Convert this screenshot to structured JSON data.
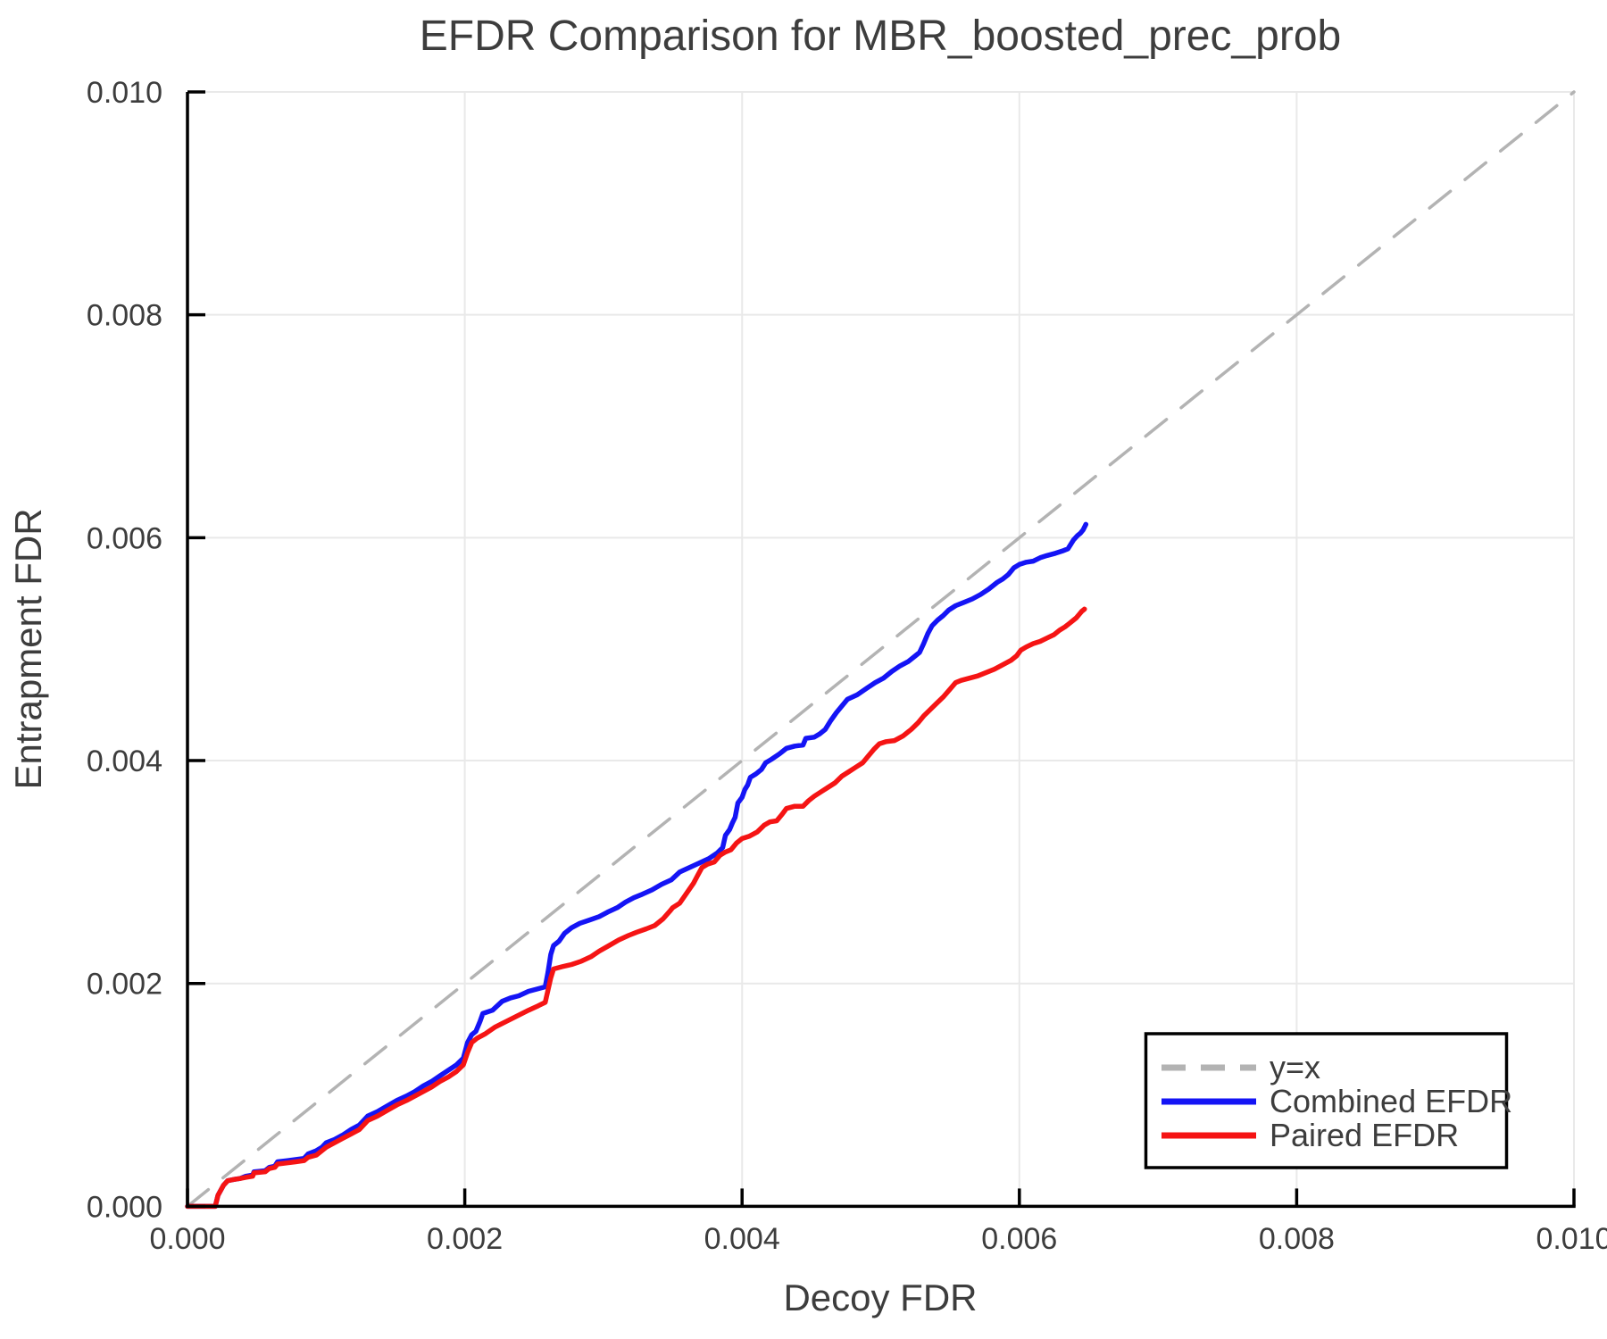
{
  "chart_data": {
    "type": "line",
    "title": "EFDR Comparison for MBR_boosted_prec_prob",
    "xlabel": "Decoy FDR",
    "ylabel": "Entrapment FDR",
    "xlim": [
      0,
      0.01
    ],
    "ylim": [
      0,
      0.01
    ],
    "grid": true,
    "background": "#ffffff",
    "grid_color": "#e9e9e9",
    "spine_color": "#000000",
    "text_color": "#3d3d3d",
    "xticks": {
      "values": [
        0,
        0.002,
        0.004,
        0.006,
        0.008,
        0.01
      ],
      "labels": [
        "0.000",
        "0.002",
        "0.004",
        "0.006",
        "0.008",
        "0.010"
      ]
    },
    "yticks": {
      "values": [
        0,
        0.002,
        0.004,
        0.006,
        0.008,
        0.01
      ],
      "labels": [
        "0.000",
        "0.002",
        "0.004",
        "0.006",
        "0.008",
        "0.010"
      ]
    },
    "legend": {
      "position": "lower-right"
    },
    "series": [
      {
        "name": "y=x",
        "color": "#b3b3b3",
        "style": "dashed",
        "width": 3.5,
        "points": [
          [
            0,
            0
          ],
          [
            0.01,
            0.01
          ]
        ]
      },
      {
        "name": "Combined EFDR",
        "color": "#1414f5",
        "style": "solid",
        "width": 5.5,
        "points": [
          [
            0,
            0
          ],
          [
            0.0002,
            0
          ],
          [
            0.00022,
            0.0001
          ],
          [
            0.00026,
            0.00019
          ],
          [
            0.00029,
            0.00023
          ],
          [
            0.00033,
            0.00024
          ],
          [
            0.00038,
            0.00025
          ],
          [
            0.00042,
            0.00027
          ],
          [
            0.00047,
            0.00028
          ],
          [
            0.00048,
            0.00031
          ],
          [
            0.00056,
            0.00032
          ],
          [
            0.00059,
            0.00035
          ],
          [
            0.00063,
            0.00036
          ],
          [
            0.00065,
            0.0004
          ],
          [
            0.00072,
            0.00041
          ],
          [
            0.00078,
            0.00042
          ],
          [
            0.00084,
            0.00043
          ],
          [
            0.00087,
            0.00047
          ],
          [
            0.00093,
            0.0005
          ],
          [
            0.00097,
            0.00053
          ],
          [
            0.001,
            0.00057
          ],
          [
            0.00106,
            0.0006
          ],
          [
            0.00112,
            0.00064
          ],
          [
            0.00118,
            0.00069
          ],
          [
            0.00124,
            0.00073
          ],
          [
            0.0013,
            0.00081
          ],
          [
            0.00137,
            0.00085
          ],
          [
            0.00144,
            0.0009
          ],
          [
            0.00151,
            0.00095
          ],
          [
            0.00158,
            0.00099
          ],
          [
            0.00164,
            0.00103
          ],
          [
            0.0017,
            0.00108
          ],
          [
            0.00176,
            0.00112
          ],
          [
            0.00182,
            0.00117
          ],
          [
            0.00188,
            0.00122
          ],
          [
            0.00194,
            0.00127
          ],
          [
            0.00199,
            0.00133
          ],
          [
            0.00202,
            0.00147
          ],
          [
            0.00205,
            0.00154
          ],
          [
            0.00208,
            0.00157
          ],
          [
            0.00211,
            0.00166
          ],
          [
            0.00213,
            0.00173
          ],
          [
            0.0022,
            0.00176
          ],
          [
            0.00227,
            0.00184
          ],
          [
            0.00233,
            0.00187
          ],
          [
            0.00239,
            0.00189
          ],
          [
            0.00246,
            0.00193
          ],
          [
            0.00252,
            0.00195
          ],
          [
            0.00258,
            0.00197
          ],
          [
            0.0026,
            0.0021
          ],
          [
            0.00262,
            0.00226
          ],
          [
            0.00264,
            0.00234
          ],
          [
            0.00268,
            0.00238
          ],
          [
            0.00272,
            0.00245
          ],
          [
            0.00277,
            0.0025
          ],
          [
            0.00283,
            0.00254
          ],
          [
            0.0029,
            0.00257
          ],
          [
            0.00297,
            0.0026
          ],
          [
            0.00303,
            0.00264
          ],
          [
            0.0031,
            0.00268
          ],
          [
            0.00316,
            0.00273
          ],
          [
            0.00322,
            0.00277
          ],
          [
            0.00328,
            0.0028
          ],
          [
            0.00335,
            0.00284
          ],
          [
            0.00342,
            0.00289
          ],
          [
            0.00349,
            0.00293
          ],
          [
            0.00355,
            0.003
          ],
          [
            0.00362,
            0.00304
          ],
          [
            0.00369,
            0.00308
          ],
          [
            0.00376,
            0.00312
          ],
          [
            0.00382,
            0.00317
          ],
          [
            0.00386,
            0.00322
          ],
          [
            0.00388,
            0.00333
          ],
          [
            0.00391,
            0.00338
          ],
          [
            0.00393,
            0.00344
          ],
          [
            0.00395,
            0.00349
          ],
          [
            0.00397,
            0.00362
          ],
          [
            0.004,
            0.00367
          ],
          [
            0.00402,
            0.00374
          ],
          [
            0.00404,
            0.00378
          ],
          [
            0.00406,
            0.00385
          ],
          [
            0.0041,
            0.00388
          ],
          [
            0.00414,
            0.00392
          ],
          [
            0.00417,
            0.00398
          ],
          [
            0.00421,
            0.00401
          ],
          [
            0.00427,
            0.00406
          ],
          [
            0.00432,
            0.00411
          ],
          [
            0.00438,
            0.00413
          ],
          [
            0.00444,
            0.00414
          ],
          [
            0.00446,
            0.0042
          ],
          [
            0.00452,
            0.00421
          ],
          [
            0.00456,
            0.00424
          ],
          [
            0.0046,
            0.00428
          ],
          [
            0.00464,
            0.00436
          ],
          [
            0.00468,
            0.00443
          ],
          [
            0.00472,
            0.00449
          ],
          [
            0.00476,
            0.00455
          ],
          [
            0.00483,
            0.00459
          ],
          [
            0.0049,
            0.00465
          ],
          [
            0.00496,
            0.0047
          ],
          [
            0.00502,
            0.00474
          ],
          [
            0.00508,
            0.0048
          ],
          [
            0.00514,
            0.00485
          ],
          [
            0.0052,
            0.00489
          ],
          [
            0.00525,
            0.00494
          ],
          [
            0.00528,
            0.00497
          ],
          [
            0.00531,
            0.00505
          ],
          [
            0.00534,
            0.00514
          ],
          [
            0.00537,
            0.00521
          ],
          [
            0.00541,
            0.00526
          ],
          [
            0.00545,
            0.0053
          ],
          [
            0.00549,
            0.00535
          ],
          [
            0.00554,
            0.00539
          ],
          [
            0.0056,
            0.00542
          ],
          [
            0.00566,
            0.00545
          ],
          [
            0.00572,
            0.00549
          ],
          [
            0.00578,
            0.00554
          ],
          [
            0.00584,
            0.0056
          ],
          [
            0.00588,
            0.00563
          ],
          [
            0.00592,
            0.00567
          ],
          [
            0.00596,
            0.00573
          ],
          [
            0.006,
            0.00576
          ],
          [
            0.00605,
            0.00578
          ],
          [
            0.0061,
            0.00579
          ],
          [
            0.00615,
            0.00582
          ],
          [
            0.0062,
            0.00584
          ],
          [
            0.00626,
            0.00586
          ],
          [
            0.00631,
            0.00588
          ],
          [
            0.00635,
            0.0059
          ],
          [
            0.00637,
            0.00594
          ],
          [
            0.00639,
            0.00598
          ],
          [
            0.00642,
            0.00602
          ],
          [
            0.00644,
            0.00604
          ],
          [
            0.00646,
            0.00607
          ],
          [
            0.00648,
            0.00612
          ]
        ]
      },
      {
        "name": "Paired EFDR",
        "color": "#f51414",
        "style": "solid",
        "width": 5.5,
        "points": [
          [
            0,
            0
          ],
          [
            0.0002,
            0
          ],
          [
            0.00022,
            0.0001
          ],
          [
            0.00026,
            0.00019
          ],
          [
            0.00029,
            0.00023
          ],
          [
            0.00033,
            0.00024
          ],
          [
            0.00038,
            0.00025
          ],
          [
            0.00042,
            0.00026
          ],
          [
            0.00047,
            0.00027
          ],
          [
            0.00048,
            0.0003
          ],
          [
            0.00056,
            0.00031
          ],
          [
            0.00059,
            0.00034
          ],
          [
            0.00063,
            0.00035
          ],
          [
            0.00065,
            0.00038
          ],
          [
            0.00072,
            0.00039
          ],
          [
            0.00078,
            0.0004
          ],
          [
            0.00084,
            0.00041
          ],
          [
            0.00087,
            0.00044
          ],
          [
            0.00093,
            0.00046
          ],
          [
            0.00097,
            0.0005
          ],
          [
            0.001,
            0.00053
          ],
          [
            0.00106,
            0.00057
          ],
          [
            0.00112,
            0.00061
          ],
          [
            0.00118,
            0.00065
          ],
          [
            0.00124,
            0.00069
          ],
          [
            0.0013,
            0.00077
          ],
          [
            0.00137,
            0.00081
          ],
          [
            0.00144,
            0.00086
          ],
          [
            0.00151,
            0.00091
          ],
          [
            0.00158,
            0.00095
          ],
          [
            0.00164,
            0.00099
          ],
          [
            0.0017,
            0.00103
          ],
          [
            0.00176,
            0.00107
          ],
          [
            0.00182,
            0.00112
          ],
          [
            0.00188,
            0.00116
          ],
          [
            0.00194,
            0.00121
          ],
          [
            0.00199,
            0.00127
          ],
          [
            0.00202,
            0.00138
          ],
          [
            0.00205,
            0.00147
          ],
          [
            0.00209,
            0.00151
          ],
          [
            0.00215,
            0.00155
          ],
          [
            0.00222,
            0.00161
          ],
          [
            0.0023,
            0.00166
          ],
          [
            0.00238,
            0.00171
          ],
          [
            0.00246,
            0.00176
          ],
          [
            0.00253,
            0.0018
          ],
          [
            0.00258,
            0.00183
          ],
          [
            0.0026,
            0.00194
          ],
          [
            0.00262,
            0.00205
          ],
          [
            0.00264,
            0.00213
          ],
          [
            0.0027,
            0.00215
          ],
          [
            0.00277,
            0.00217
          ],
          [
            0.00284,
            0.0022
          ],
          [
            0.00291,
            0.00224
          ],
          [
            0.00297,
            0.00229
          ],
          [
            0.00304,
            0.00234
          ],
          [
            0.00311,
            0.00239
          ],
          [
            0.00318,
            0.00243
          ],
          [
            0.00324,
            0.00246
          ],
          [
            0.00331,
            0.00249
          ],
          [
            0.00337,
            0.00252
          ],
          [
            0.00343,
            0.00258
          ],
          [
            0.00348,
            0.00265
          ],
          [
            0.0035,
            0.00268
          ],
          [
            0.00355,
            0.00272
          ],
          [
            0.0036,
            0.00281
          ],
          [
            0.00365,
            0.0029
          ],
          [
            0.00368,
            0.00297
          ],
          [
            0.00371,
            0.00304
          ],
          [
            0.00375,
            0.00307
          ],
          [
            0.0038,
            0.00309
          ],
          [
            0.00384,
            0.00315
          ],
          [
            0.00388,
            0.00318
          ],
          [
            0.00392,
            0.0032
          ],
          [
            0.00396,
            0.00326
          ],
          [
            0.004,
            0.0033
          ],
          [
            0.00405,
            0.00332
          ],
          [
            0.00411,
            0.00336
          ],
          [
            0.00416,
            0.00342
          ],
          [
            0.0042,
            0.00345
          ],
          [
            0.00425,
            0.00346
          ],
          [
            0.00429,
            0.00352
          ],
          [
            0.00432,
            0.00357
          ],
          [
            0.00438,
            0.00359
          ],
          [
            0.00444,
            0.00359
          ],
          [
            0.00448,
            0.00364
          ],
          [
            0.00452,
            0.00368
          ],
          [
            0.00457,
            0.00372
          ],
          [
            0.00462,
            0.00376
          ],
          [
            0.00467,
            0.0038
          ],
          [
            0.00472,
            0.00386
          ],
          [
            0.00477,
            0.0039
          ],
          [
            0.00482,
            0.00394
          ],
          [
            0.00487,
            0.00398
          ],
          [
            0.00491,
            0.00404
          ],
          [
            0.00495,
            0.0041
          ],
          [
            0.00499,
            0.00415
          ],
          [
            0.00504,
            0.00417
          ],
          [
            0.0051,
            0.00418
          ],
          [
            0.00516,
            0.00422
          ],
          [
            0.00522,
            0.00428
          ],
          [
            0.00527,
            0.00434
          ],
          [
            0.00531,
            0.0044
          ],
          [
            0.00535,
            0.00445
          ],
          [
            0.0054,
            0.00451
          ],
          [
            0.00545,
            0.00457
          ],
          [
            0.0055,
            0.00464
          ],
          [
            0.00554,
            0.0047
          ],
          [
            0.00558,
            0.00472
          ],
          [
            0.00564,
            0.00474
          ],
          [
            0.0057,
            0.00476
          ],
          [
            0.00576,
            0.00479
          ],
          [
            0.00582,
            0.00482
          ],
          [
            0.00588,
            0.00486
          ],
          [
            0.00594,
            0.0049
          ],
          [
            0.00598,
            0.00494
          ],
          [
            0.00601,
            0.00499
          ],
          [
            0.00605,
            0.00502
          ],
          [
            0.0061,
            0.00505
          ],
          [
            0.00615,
            0.00507
          ],
          [
            0.0062,
            0.0051
          ],
          [
            0.00625,
            0.00513
          ],
          [
            0.00629,
            0.00517
          ],
          [
            0.00633,
            0.0052
          ],
          [
            0.00636,
            0.00523
          ],
          [
            0.00639,
            0.00526
          ],
          [
            0.00641,
            0.00528
          ],
          [
            0.00643,
            0.00531
          ],
          [
            0.00645,
            0.00534
          ],
          [
            0.00647,
            0.00536
          ]
        ]
      }
    ]
  }
}
